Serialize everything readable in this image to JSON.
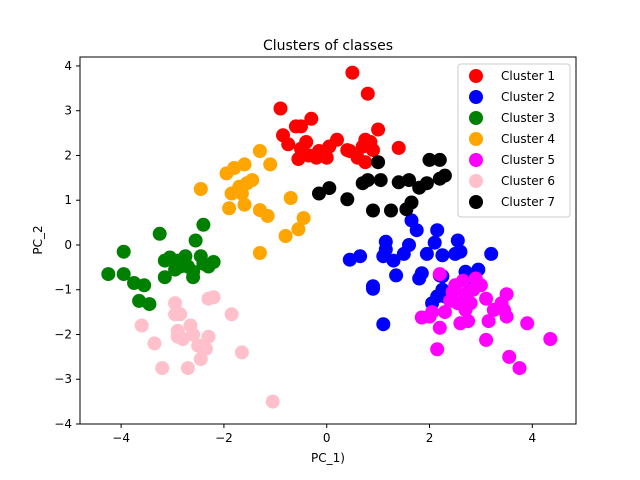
{
  "chart_data": {
    "type": "scatter",
    "title": "Clusters of classes",
    "xlabel": "PC_1)",
    "ylabel": "PC_2",
    "xlim": [
      -4.8,
      4.85
    ],
    "ylim": [
      -4.0,
      4.2
    ],
    "xticks": [
      -4,
      -2,
      0,
      2,
      4
    ],
    "yticks": [
      -4,
      -3,
      -2,
      -1,
      0,
      1,
      2,
      3,
      4
    ],
    "grid": false,
    "legend_position": "top-right",
    "series": [
      {
        "name": "Cluster 1",
        "color": "#ff0000",
        "points": [
          [
            0.5,
            3.85
          ],
          [
            0.8,
            3.38
          ],
          [
            -0.9,
            3.05
          ],
          [
            -0.85,
            2.45
          ],
          [
            -0.6,
            2.65
          ],
          [
            -0.5,
            2.65
          ],
          [
            -0.3,
            2.82
          ],
          [
            -0.75,
            2.25
          ],
          [
            -0.5,
            2.15
          ],
          [
            -0.4,
            2.3
          ],
          [
            -0.55,
            1.92
          ],
          [
            -0.35,
            2.0
          ],
          [
            -0.2,
            1.95
          ],
          [
            -0.1,
            2.05
          ],
          [
            0.05,
            2.2
          ],
          [
            0.0,
            1.95
          ],
          [
            -0.15,
            2.1
          ],
          [
            0.2,
            2.35
          ],
          [
            0.4,
            2.12
          ],
          [
            0.45,
            2.1
          ],
          [
            0.75,
            2.35
          ],
          [
            0.85,
            2.3
          ],
          [
            1.0,
            2.58
          ],
          [
            0.7,
            2.2
          ],
          [
            0.9,
            2.12
          ],
          [
            0.6,
            1.95
          ],
          [
            0.75,
            1.85
          ],
          [
            1.4,
            2.17
          ]
        ]
      },
      {
        "name": "Cluster 2",
        "color": "#0000ff",
        "points": [
          [
            0.45,
            -0.33
          ],
          [
            0.65,
            -0.25
          ],
          [
            0.9,
            -0.92
          ],
          [
            0.9,
            -0.98
          ],
          [
            1.1,
            -1.77
          ],
          [
            1.1,
            -0.25
          ],
          [
            1.15,
            0.07
          ],
          [
            1.15,
            -0.1
          ],
          [
            1.3,
            -0.35
          ],
          [
            1.35,
            -0.68
          ],
          [
            1.5,
            -0.2
          ],
          [
            1.6,
            0.0
          ],
          [
            1.65,
            0.55
          ],
          [
            1.75,
            0.33
          ],
          [
            1.8,
            -0.75
          ],
          [
            1.85,
            -0.63
          ],
          [
            1.95,
            -0.2
          ],
          [
            2.05,
            -1.3
          ],
          [
            2.1,
            0.05
          ],
          [
            2.15,
            0.33
          ],
          [
            2.15,
            -1.15
          ],
          [
            2.2,
            -0.68
          ],
          [
            2.25,
            -0.7
          ],
          [
            2.25,
            -1.0
          ],
          [
            2.25,
            -0.23
          ],
          [
            2.3,
            -1.15
          ],
          [
            2.5,
            -0.2
          ],
          [
            2.55,
            0.1
          ],
          [
            2.6,
            -0.15
          ],
          [
            2.7,
            -0.6
          ],
          [
            2.8,
            -0.9
          ],
          [
            2.95,
            -0.55
          ],
          [
            3.2,
            -0.2
          ]
        ]
      },
      {
        "name": "Cluster 3",
        "color": "#008000",
        "points": [
          [
            -4.25,
            -0.65
          ],
          [
            -3.95,
            -0.15
          ],
          [
            -3.95,
            -0.65
          ],
          [
            -3.75,
            -0.85
          ],
          [
            -3.65,
            -1.25
          ],
          [
            -3.55,
            -0.9
          ],
          [
            -3.45,
            -1.32
          ],
          [
            -3.25,
            0.25
          ],
          [
            -3.15,
            -0.72
          ],
          [
            -3.15,
            -0.35
          ],
          [
            -3.05,
            -0.28
          ],
          [
            -2.95,
            -0.55
          ],
          [
            -2.9,
            -0.35
          ],
          [
            -2.85,
            -0.48
          ],
          [
            -2.75,
            -0.25
          ],
          [
            -2.7,
            -0.48
          ],
          [
            -2.6,
            -0.6
          ],
          [
            -2.55,
            0.1
          ],
          [
            -2.45,
            -0.25
          ],
          [
            -2.4,
            -0.42
          ],
          [
            -2.4,
            0.45
          ],
          [
            -2.3,
            -0.48
          ],
          [
            -2.2,
            -0.38
          ],
          [
            -2.6,
            -0.72
          ]
        ]
      },
      {
        "name": "Cluster 4",
        "color": "#ffa500",
        "points": [
          [
            -2.45,
            1.25
          ],
          [
            -1.95,
            1.6
          ],
          [
            -1.8,
            1.72
          ],
          [
            -1.6,
            1.8
          ],
          [
            -1.3,
            2.1
          ],
          [
            -1.1,
            1.8
          ],
          [
            -1.85,
            1.15
          ],
          [
            -1.7,
            1.3
          ],
          [
            -1.55,
            1.38
          ],
          [
            -1.45,
            1.45
          ],
          [
            -1.65,
            1.15
          ],
          [
            -1.9,
            0.82
          ],
          [
            -1.6,
            0.9
          ],
          [
            -1.3,
            0.78
          ],
          [
            -1.15,
            0.65
          ],
          [
            -1.3,
            -0.18
          ],
          [
            -0.7,
            1.05
          ],
          [
            -0.8,
            0.2
          ],
          [
            -0.55,
            0.35
          ],
          [
            -0.45,
            0.6
          ]
        ]
      },
      {
        "name": "Cluster 5",
        "color": "#ff00ff",
        "points": [
          [
            1.85,
            -1.62
          ],
          [
            2.0,
            -1.6
          ],
          [
            2.05,
            -1.5
          ],
          [
            2.15,
            -2.33
          ],
          [
            2.2,
            -1.85
          ],
          [
            2.3,
            -1.5
          ],
          [
            2.4,
            -1.25
          ],
          [
            2.45,
            -1.05
          ],
          [
            2.5,
            -0.9
          ],
          [
            2.55,
            -1.3
          ],
          [
            2.6,
            -1.75
          ],
          [
            2.65,
            -0.8
          ],
          [
            2.7,
            -1.1
          ],
          [
            2.7,
            -1.45
          ],
          [
            2.75,
            -1.7
          ],
          [
            2.8,
            -1.3
          ],
          [
            2.85,
            -1.0
          ],
          [
            2.9,
            -0.75
          ],
          [
            3.0,
            -0.9
          ],
          [
            3.1,
            -1.2
          ],
          [
            3.1,
            -2.12
          ],
          [
            3.15,
            -1.7
          ],
          [
            3.25,
            -1.45
          ],
          [
            3.4,
            -1.3
          ],
          [
            3.45,
            -1.45
          ],
          [
            3.5,
            -1.1
          ],
          [
            3.5,
            -1.6
          ],
          [
            3.55,
            -2.5
          ],
          [
            3.75,
            -2.75
          ],
          [
            3.9,
            -1.75
          ],
          [
            4.35,
            -2.1
          ],
          [
            2.2,
            -0.65
          ]
        ]
      },
      {
        "name": "Cluster 6",
        "color": "#ffc0cb",
        "points": [
          [
            -3.6,
            -1.8
          ],
          [
            -3.35,
            -2.2
          ],
          [
            -3.2,
            -2.75
          ],
          [
            -2.95,
            -1.3
          ],
          [
            -2.95,
            -1.55
          ],
          [
            -2.9,
            -1.92
          ],
          [
            -2.9,
            -2.05
          ],
          [
            -2.85,
            -1.55
          ],
          [
            -2.8,
            -2.1
          ],
          [
            -2.7,
            -2.75
          ],
          [
            -2.65,
            -1.8
          ],
          [
            -2.6,
            -2.0
          ],
          [
            -2.5,
            -2.25
          ],
          [
            -2.45,
            -2.55
          ],
          [
            -2.45,
            -2.25
          ],
          [
            -2.35,
            -2.32
          ],
          [
            -2.3,
            -2.05
          ],
          [
            -2.3,
            -1.2
          ],
          [
            -2.2,
            -1.17
          ],
          [
            -1.85,
            -1.55
          ],
          [
            -1.65,
            -2.4
          ],
          [
            -1.05,
            -3.5
          ]
        ]
      },
      {
        "name": "Cluster 7",
        "color": "#000000",
        "points": [
          [
            -0.15,
            1.15
          ],
          [
            0.05,
            1.27
          ],
          [
            0.4,
            1.02
          ],
          [
            0.7,
            1.38
          ],
          [
            0.8,
            1.45
          ],
          [
            1.05,
            1.45
          ],
          [
            0.9,
            0.77
          ],
          [
            1.25,
            0.77
          ],
          [
            1.4,
            1.4
          ],
          [
            1.55,
            0.8
          ],
          [
            1.6,
            1.45
          ],
          [
            1.65,
            0.95
          ],
          [
            1.8,
            1.28
          ],
          [
            1.95,
            1.38
          ],
          [
            2.0,
            1.9
          ],
          [
            2.2,
            1.9
          ],
          [
            2.2,
            1.48
          ],
          [
            2.3,
            1.55
          ],
          [
            1.0,
            1.85
          ]
        ]
      }
    ]
  }
}
